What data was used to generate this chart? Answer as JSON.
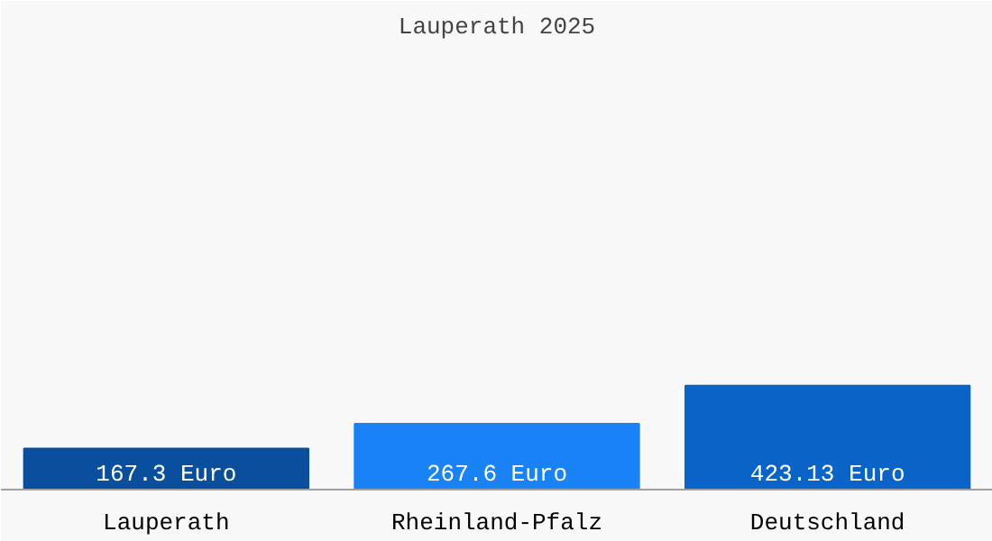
{
  "chart_data": {
    "type": "bar",
    "title": "Lauperath 2025",
    "categories": [
      "Lauperath",
      "Rheinland-Pfalz",
      "Deutschland"
    ],
    "values": [
      167.3,
      267.6,
      423.13
    ],
    "colors": [
      "#0a4f9e",
      "#1a82f7",
      "#0a64c8"
    ],
    "value_labels": [
      "167.3 Euro",
      "267.6 Euro",
      "423.13 Euro"
    ],
    "ylim": [
      0,
      1790
    ],
    "grid": false
  }
}
